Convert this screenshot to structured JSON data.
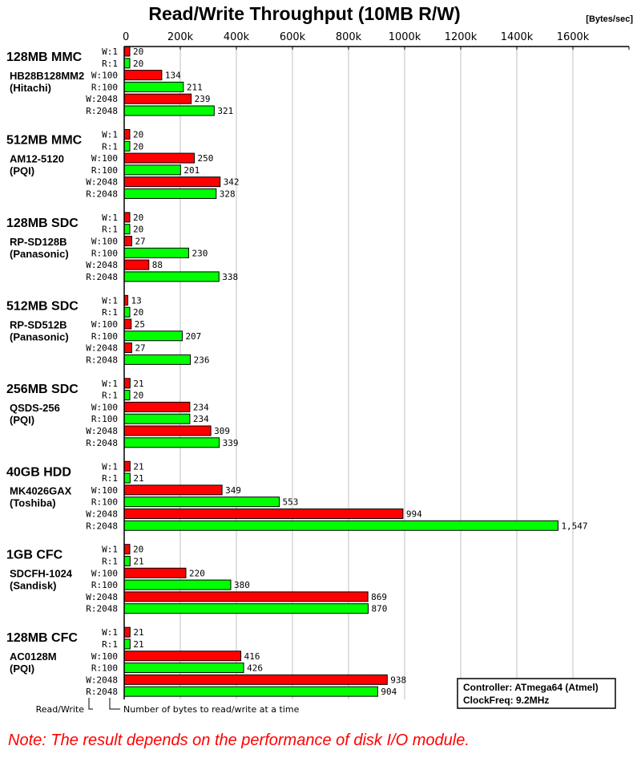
{
  "chart_data": {
    "type": "bar",
    "orientation": "horizontal",
    "title": "Read/Write Throughput (10MB R/W)",
    "unit": "[Bytes/sec]",
    "xlim": [
      0,
      1600
    ],
    "x_ticks": [
      "0",
      "200k",
      "400k",
      "600k",
      "800k",
      "1000k",
      "1200k",
      "1400k",
      "1600k"
    ],
    "x_tick_values": [
      0,
      200,
      400,
      600,
      800,
      1000,
      1200,
      1400,
      1600
    ],
    "grid": true,
    "row_labels": [
      "W:1",
      "R:1",
      "W:100",
      "R:100",
      "W:2048",
      "R:2048"
    ],
    "colors": {
      "write": "#ff0000",
      "read": "#00ff00"
    },
    "groups": [
      {
        "name": "128MB MMC",
        "model": "HB28B128MM2",
        "maker": "(Hitachi)",
        "values": [
          20,
          20,
          134,
          211,
          239,
          321
        ]
      },
      {
        "name": "512MB MMC",
        "model": "AM12-5120",
        "maker": "(PQI)",
        "values": [
          20,
          20,
          250,
          201,
          342,
          328
        ]
      },
      {
        "name": "128MB SDC",
        "model": "RP-SD128B",
        "maker": "(Panasonic)",
        "values": [
          20,
          20,
          27,
          230,
          88,
          338
        ]
      },
      {
        "name": "512MB SDC",
        "model": "RP-SD512B",
        "maker": "(Panasonic)",
        "values": [
          13,
          20,
          25,
          207,
          27,
          236
        ]
      },
      {
        "name": "256MB SDC",
        "model": "QSDS-256",
        "maker": "(PQI)",
        "values": [
          21,
          20,
          234,
          234,
          309,
          339
        ]
      },
      {
        "name": "40GB HDD",
        "model": "MK4026GAX",
        "maker": "(Toshiba)",
        "values": [
          21,
          21,
          349,
          553,
          994,
          1547
        ]
      },
      {
        "name": "1GB CFC",
        "model": "SDCFH-1024",
        "maker": "(Sandisk)",
        "values": [
          20,
          21,
          220,
          380,
          869,
          870
        ]
      },
      {
        "name": "128MB CFC",
        "model": "AC0128M",
        "maker": "(PQI)",
        "values": [
          21,
          21,
          416,
          426,
          938,
          904
        ]
      }
    ]
  },
  "legend": {
    "read_write": "Read/Write",
    "bytes": "Number of bytes to read/write at a time"
  },
  "info": {
    "controller": "Controller: ATmega64 (Atmel)",
    "clock": "ClockFreq: 9.2MHz"
  },
  "note": "Note: The result depends on the performance of disk I/O module."
}
